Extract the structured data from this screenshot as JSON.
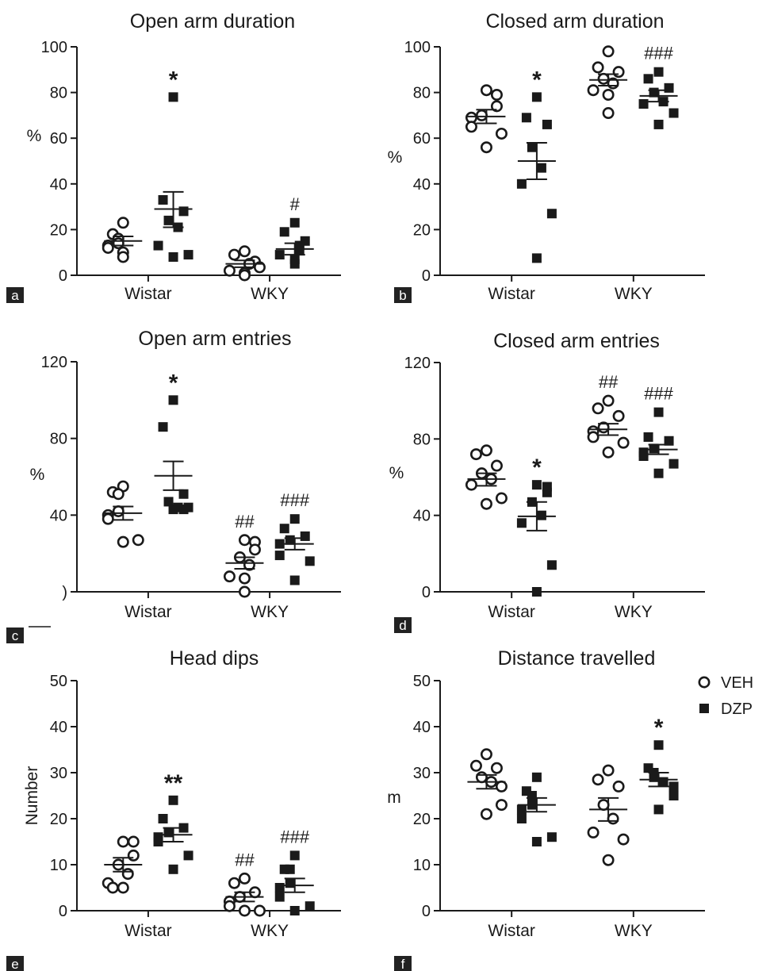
{
  "legend": [
    {
      "label": "VEH",
      "marker": "circle-open"
    },
    {
      "label": "DZP",
      "marker": "square-filled"
    }
  ],
  "colors": {
    "marker": "#1a1a1a",
    "axis": "#1a1a1a",
    "badge": "#222222"
  },
  "chart_data": [
    {
      "panel": "a",
      "type": "scatter",
      "title": "Open arm duration",
      "ylabel": "%",
      "xlabel": "",
      "categories": [
        "Wistar",
        "WKY"
      ],
      "ylim": [
        0,
        100
      ],
      "yticks": [
        "0",
        "20",
        "40",
        "60",
        "80",
        "100"
      ],
      "groups": [
        {
          "category": "Wistar",
          "series": "VEH",
          "values": [
            23,
            18,
            16,
            14,
            13,
            12,
            10,
            8
          ],
          "mean": 15,
          "sem_low": 13,
          "sem_high": 17,
          "annotation": ""
        },
        {
          "category": "Wistar",
          "series": "DZP",
          "values": [
            78,
            33,
            28,
            24,
            21,
            13,
            9,
            8
          ],
          "mean": 29,
          "sem_low": 21,
          "sem_high": 36.5,
          "annotation": "*"
        },
        {
          "category": "WKY",
          "series": "VEH",
          "values": [
            10.5,
            9,
            6,
            5,
            3.5,
            2,
            1,
            0
          ],
          "mean": 5,
          "sem_low": 3.5,
          "sem_high": 6.5,
          "annotation": ""
        },
        {
          "category": "WKY",
          "series": "DZP",
          "values": [
            23,
            19,
            15,
            13,
            11,
            9,
            7,
            5
          ],
          "mean": 11.5,
          "sem_low": 9,
          "sem_high": 14,
          "annotation": "#"
        }
      ]
    },
    {
      "panel": "b",
      "type": "scatter",
      "title": "Closed arm duration",
      "ylabel": "%",
      "xlabel": "",
      "categories": [
        "Wistar",
        "WKY"
      ],
      "ylim": [
        0,
        100
      ],
      "yticks": [
        "0",
        "20",
        "40",
        "60",
        "80",
        "100"
      ],
      "groups": [
        {
          "category": "Wistar",
          "series": "VEH",
          "values": [
            81,
            79,
            74,
            70,
            69,
            65,
            62,
            56
          ],
          "mean": 69.5,
          "sem_low": 66.5,
          "sem_high": 72.5,
          "annotation": ""
        },
        {
          "category": "Wistar",
          "series": "DZP",
          "values": [
            78,
            69,
            66,
            56,
            47,
            40,
            27,
            7.5
          ],
          "mean": 50,
          "sem_low": 42,
          "sem_high": 58,
          "annotation": "*"
        },
        {
          "category": "WKY",
          "series": "VEH",
          "values": [
            98,
            91,
            89,
            86,
            84,
            81,
            79,
            71
          ],
          "mean": 85.5,
          "sem_low": 83,
          "sem_high": 88,
          "annotation": ""
        },
        {
          "category": "WKY",
          "series": "DZP",
          "values": [
            89,
            86,
            82,
            80,
            76,
            75,
            71,
            66
          ],
          "mean": 78.5,
          "sem_low": 76,
          "sem_high": 81,
          "annotation": "###"
        }
      ]
    },
    {
      "panel": "c",
      "type": "scatter",
      "title": "Open arm entries",
      "ylabel": "%",
      "xlabel": "",
      "categories": [
        "Wistar",
        "WKY"
      ],
      "ylim": [
        0,
        120
      ],
      "yticks": [
        ")",
        "40",
        "80",
        "120"
      ],
      "groups": [
        {
          "category": "Wistar",
          "series": "VEH",
          "values": [
            55,
            52,
            51,
            42,
            40,
            38,
            27,
            26
          ],
          "mean": 41,
          "sem_low": 37.5,
          "sem_high": 44.5,
          "annotation": ""
        },
        {
          "category": "Wistar",
          "series": "DZP",
          "values": [
            100,
            86,
            51,
            47,
            44,
            44,
            43,
            43
          ],
          "mean": 60.5,
          "sem_low": 53,
          "sem_high": 68,
          "annotation": "*"
        },
        {
          "category": "WKY",
          "series": "VEH",
          "values": [
            27,
            26,
            22,
            18,
            14,
            8,
            7,
            0
          ],
          "mean": 15,
          "sem_low": 12,
          "sem_high": 18,
          "annotation": "##"
        },
        {
          "category": "WKY",
          "series": "DZP",
          "values": [
            38,
            33,
            29,
            27,
            25,
            19,
            16,
            6
          ],
          "mean": 25,
          "sem_low": 22,
          "sem_high": 28,
          "annotation": "###"
        }
      ]
    },
    {
      "panel": "d",
      "type": "scatter",
      "title": "Closed arm entries",
      "ylabel": "%",
      "xlabel": "",
      "categories": [
        "Wistar",
        "WKY"
      ],
      "ylim": [
        0,
        120
      ],
      "yticks": [
        "0",
        "40",
        "80",
        "120"
      ],
      "groups": [
        {
          "category": "Wistar",
          "series": "VEH",
          "values": [
            74,
            72,
            66,
            62,
            59,
            56,
            49,
            46
          ],
          "mean": 59,
          "sem_low": 55.5,
          "sem_high": 62,
          "annotation": ""
        },
        {
          "category": "Wistar",
          "series": "DZP",
          "values": [
            56,
            55,
            52,
            47,
            40,
            36,
            14,
            0
          ],
          "mean": 39.5,
          "sem_low": 32,
          "sem_high": 47,
          "annotation": "*"
        },
        {
          "category": "WKY",
          "series": "VEH",
          "values": [
            100,
            96,
            92,
            86,
            84,
            81,
            78,
            73
          ],
          "mean": 85,
          "sem_low": 82,
          "sem_high": 88,
          "annotation": "##"
        },
        {
          "category": "WKY",
          "series": "DZP",
          "values": [
            94,
            81,
            79,
            75,
            73,
            71,
            67,
            62
          ],
          "mean": 74.5,
          "sem_low": 72,
          "sem_high": 77,
          "annotation": "###"
        }
      ]
    },
    {
      "panel": "e",
      "type": "scatter",
      "title": "Head dips",
      "ylabel": "Number",
      "xlabel": "",
      "categories": [
        "Wistar",
        "WKY"
      ],
      "ylim": [
        0,
        50
      ],
      "yticks": [
        "0",
        "10",
        "20",
        "30",
        "40",
        "50"
      ],
      "groups": [
        {
          "category": "Wistar",
          "series": "VEH",
          "values": [
            15,
            15,
            12,
            10,
            8,
            6,
            5,
            5
          ],
          "mean": 10,
          "sem_low": 8.5,
          "sem_high": 11.5,
          "annotation": ""
        },
        {
          "category": "Wistar",
          "series": "DZP",
          "values": [
            24,
            20,
            18,
            17,
            16,
            15,
            12,
            9
          ],
          "mean": 16.5,
          "sem_low": 15,
          "sem_high": 18,
          "annotation": "**"
        },
        {
          "category": "WKY",
          "series": "VEH",
          "values": [
            7,
            6,
            4,
            3,
            2,
            1,
            0,
            0
          ],
          "mean": 3,
          "sem_low": 2,
          "sem_high": 4,
          "annotation": "##"
        },
        {
          "category": "WKY",
          "series": "DZP",
          "values": [
            12,
            9,
            9,
            6,
            5,
            3,
            1,
            0
          ],
          "mean": 5.5,
          "sem_low": 4,
          "sem_high": 7,
          "annotation": "###"
        }
      ]
    },
    {
      "panel": "f",
      "type": "scatter",
      "title": "Distance travelled",
      "ylabel": "m",
      "xlabel": "",
      "categories": [
        "Wistar",
        "WKY"
      ],
      "ylim": [
        0,
        50
      ],
      "yticks": [
        "0",
        "10",
        "20",
        "30",
        "40",
        "50"
      ],
      "groups": [
        {
          "category": "Wistar",
          "series": "VEH",
          "values": [
            34,
            31.5,
            31,
            29,
            28,
            27,
            23,
            21
          ],
          "mean": 28,
          "sem_low": 26.5,
          "sem_high": 29.5,
          "annotation": ""
        },
        {
          "category": "Wistar",
          "series": "DZP",
          "values": [
            29,
            26,
            25,
            23,
            22,
            20,
            16,
            15
          ],
          "mean": 23,
          "sem_low": 21.5,
          "sem_high": 24.5,
          "annotation": ""
        },
        {
          "category": "WKY",
          "series": "VEH",
          "values": [
            30.5,
            28.5,
            27,
            23,
            20,
            17,
            15.5,
            11
          ],
          "mean": 22,
          "sem_low": 19.5,
          "sem_high": 24.5,
          "annotation": ""
        },
        {
          "category": "WKY",
          "series": "DZP",
          "values": [
            36,
            31,
            30,
            29,
            28,
            27,
            25,
            22
          ],
          "mean": 28.5,
          "sem_low": 27,
          "sem_high": 30,
          "annotation": "*"
        }
      ]
    }
  ]
}
